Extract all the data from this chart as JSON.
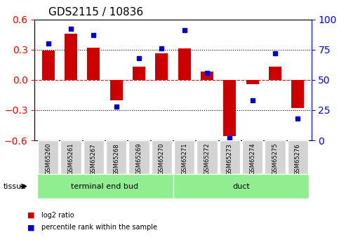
{
  "title": "GDS2115 / 10836",
  "samples": [
    "GSM65260",
    "GSM65261",
    "GSM65267",
    "GSM65268",
    "GSM65269",
    "GSM65270",
    "GSM65271",
    "GSM65272",
    "GSM65273",
    "GSM65274",
    "GSM65275",
    "GSM65276"
  ],
  "log2_ratio": [
    0.29,
    0.46,
    0.32,
    -0.2,
    0.13,
    0.26,
    0.31,
    0.08,
    -0.56,
    -0.04,
    0.13,
    -0.28
  ],
  "percentile": [
    80,
    92,
    87,
    28,
    68,
    76,
    91,
    56,
    2,
    33,
    72,
    18
  ],
  "groups": [
    {
      "label": "terminal end bud",
      "start": 0,
      "end": 6,
      "color": "#90EE90"
    },
    {
      "label": "duct",
      "start": 6,
      "end": 12,
      "color": "#90EE90"
    }
  ],
  "bar_color": "#CC0000",
  "dot_color": "#0000CC",
  "ylim_left": [
    -0.6,
    0.6
  ],
  "ylim_right": [
    0,
    100
  ],
  "yticks_left": [
    -0.6,
    -0.3,
    0.0,
    0.3,
    0.6
  ],
  "yticks_right": [
    0,
    25,
    50,
    75,
    100
  ],
  "hlines": [
    0.3,
    0.0,
    -0.3
  ],
  "bg_color_samples": "#D3D3D3",
  "tissue_label": "tissue",
  "legend_log2": "log2 ratio",
  "legend_pct": "percentile rank within the sample"
}
